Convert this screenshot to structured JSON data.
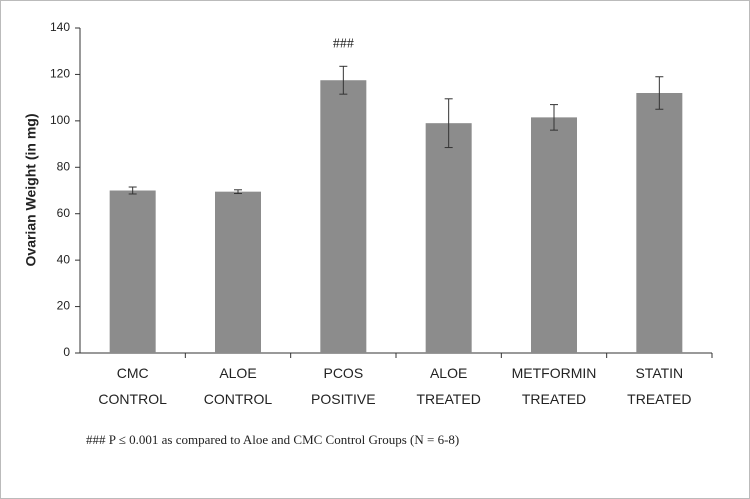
{
  "chart_data": {
    "type": "bar",
    "y_label": "Ovarian Weight (in mg)",
    "categories": [
      "CMC CONTROL",
      "ALOE CONTROL",
      "PCOS POSITIVE",
      "ALOE TREATED",
      "METFORMIN TREATED",
      "STATIN TREATED"
    ],
    "values": [
      70,
      69.5,
      117.5,
      99,
      101.5,
      112
    ],
    "errors": [
      1.5,
      0.8,
      6,
      10.5,
      5.5,
      7
    ],
    "color": "#8c8c8c",
    "ylim": [
      0,
      140
    ],
    "yticks": [
      0,
      20,
      40,
      60,
      80,
      100,
      120,
      140
    ],
    "annotation": "###",
    "footnote": "### P ≤ 0.001 as compared to Aloe and CMC Control Groups (N = 6-8)"
  }
}
